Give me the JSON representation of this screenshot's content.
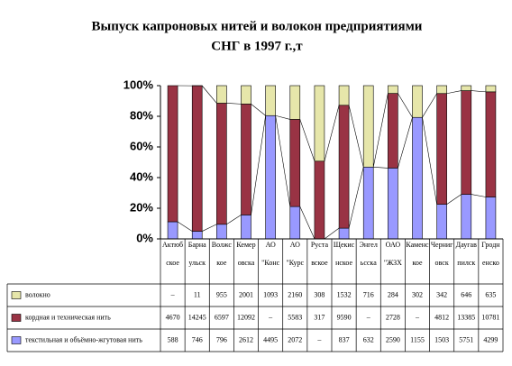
{
  "chart_data": {
    "type": "stacked-percent-bar",
    "title": [
      "Выпуск капроновых нитей и волокон предприятиями",
      "СНГ в 1997 г.,т"
    ],
    "categories": [
      [
        "Актюб",
        "ское"
      ],
      [
        "Барна",
        "ульск"
      ],
      [
        "Волжс",
        "кое"
      ],
      [
        "Кемер",
        "овска"
      ],
      [
        "АО",
        "\"Конс"
      ],
      [
        "АО",
        "\"Курс"
      ],
      [
        "Руста",
        "вское"
      ],
      [
        "Щекис",
        "нское"
      ],
      [
        "Энгел",
        "ьсска"
      ],
      [
        "ОАО",
        "\"ЖЗХ"
      ],
      [
        "Каменс",
        "кое"
      ],
      [
        "Черниг",
        "овск"
      ],
      [
        "Даугав",
        "пилск"
      ],
      [
        "Гродн",
        "енско"
      ]
    ],
    "series": [
      {
        "name": "текстильная и объёмно-жгутовая нить",
        "color": "#9999ff",
        "values": [
          588,
          746,
          796,
          2612,
          4495,
          2072,
          null,
          837,
          632,
          2590,
          1155,
          1503,
          5751,
          4299
        ],
        "value_labels": [
          "588",
          "746",
          "796",
          "2612",
          "4495",
          "2072",
          "–",
          "837",
          "632",
          "2590",
          "1155",
          "1503",
          "5751",
          "4299"
        ]
      },
      {
        "name": "кордная и техническая нить",
        "color": "#993344",
        "values": [
          4670,
          14245,
          6597,
          12092,
          null,
          5583,
          317,
          9590,
          null,
          2728,
          null,
          4812,
          13385,
          10781
        ],
        "value_labels": [
          "4670",
          "14245",
          "6597",
          "12092",
          "–",
          "5583",
          "317",
          "9590",
          "–",
          "2728",
          "–",
          "4812",
          "13385",
          "10781"
        ]
      },
      {
        "name": "волокно",
        "color": "#e6e6aa",
        "values": [
          null,
          11,
          955,
          2001,
          1093,
          2160,
          308,
          1532,
          716,
          284,
          302,
          342,
          646,
          635
        ],
        "value_labels": [
          "–",
          "11",
          "955",
          "2001",
          "1093",
          "2160",
          "308",
          "1532",
          "716",
          "284",
          "302",
          "342",
          "646",
          "635"
        ]
      }
    ],
    "ylim": [
      0,
      100
    ],
    "yticks": [
      {
        "value": 0,
        "label": "0%"
      },
      {
        "value": 20,
        "label": "20%"
      },
      {
        "value": 40,
        "label": "40%"
      },
      {
        "value": 60,
        "label": "60%"
      },
      {
        "value": 80,
        "label": "80%"
      },
      {
        "value": 100,
        "label": "100%"
      }
    ]
  }
}
